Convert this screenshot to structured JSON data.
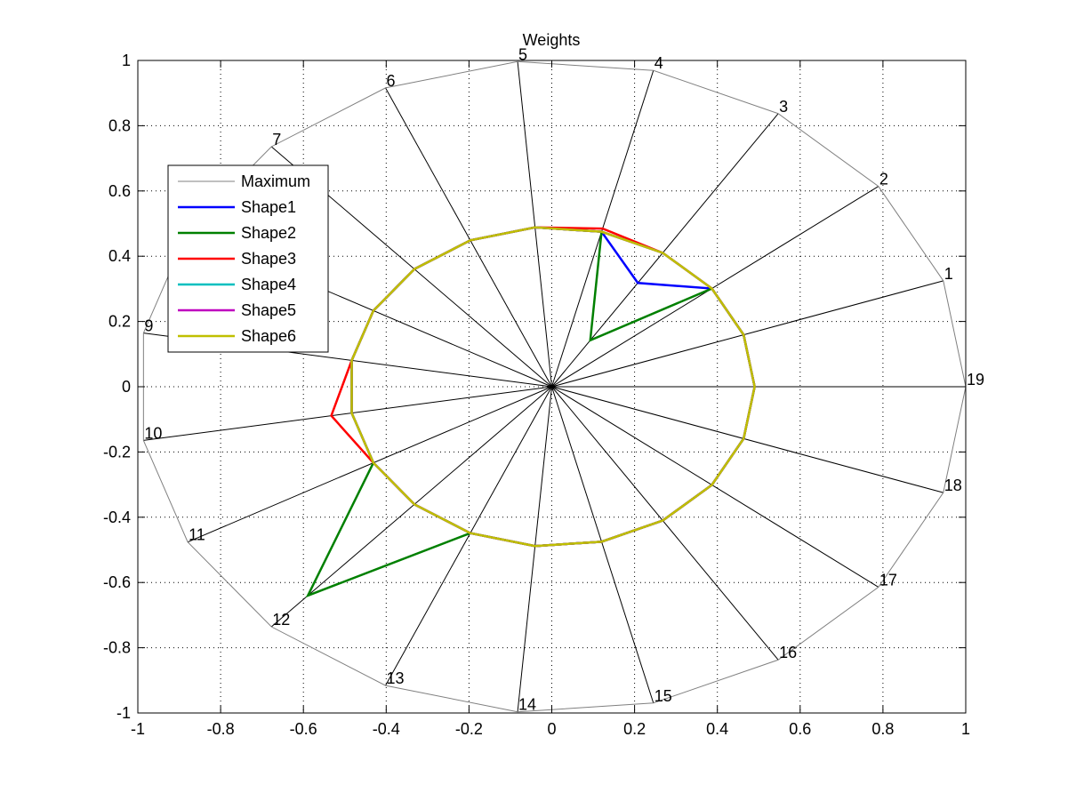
{
  "chart_data": {
    "type": "radar",
    "title": "Weights",
    "xlim": [
      -1,
      1
    ],
    "ylim": [
      -1,
      1
    ],
    "xticks": [
      "-1",
      "-0.8",
      "-0.6",
      "-0.4",
      "-0.2",
      "0",
      "0.2",
      "0.4",
      "0.6",
      "0.8",
      "1"
    ],
    "yticks": [
      "1",
      "0.8",
      "0.6",
      "0.4",
      "0.2",
      "0",
      "-0.2",
      "-0.4",
      "-0.6",
      "-0.8",
      "-1"
    ],
    "grid": true,
    "legend_position": "upper-left",
    "spokes": [
      "1",
      "2",
      "3",
      "4",
      "5",
      "6",
      "7",
      "8",
      "9",
      "10",
      "11",
      "12",
      "13",
      "14",
      "15",
      "16",
      "17",
      "18",
      "19"
    ],
    "series": [
      {
        "name": "Maximum",
        "color": "#808080",
        "width": 1,
        "values": [
          1,
          1,
          1,
          1,
          1,
          1,
          1,
          1,
          1,
          1,
          1,
          1,
          1,
          1,
          1,
          1,
          1,
          1,
          1
        ]
      },
      {
        "name": "Shape1",
        "color": "#0000ff",
        "width": 2.5,
        "values": [
          0.49,
          0.49,
          0.38,
          0.49,
          0.49,
          0.49,
          0.49,
          0.49,
          0.49,
          0.49,
          0.49,
          0.49,
          0.49,
          0.49,
          0.49,
          0.49,
          0.49,
          0.49,
          0.49
        ]
      },
      {
        "name": "Shape2",
        "color": "#008000",
        "width": 2.5,
        "values": [
          0.49,
          0.49,
          0.17,
          0.49,
          0.49,
          0.49,
          0.49,
          0.49,
          0.49,
          0.49,
          0.49,
          0.87,
          0.49,
          0.49,
          0.49,
          0.49,
          0.49,
          0.49,
          0.49
        ]
      },
      {
        "name": "Shape3",
        "color": "#ff0000",
        "width": 2.5,
        "values": [
          0.49,
          0.49,
          0.49,
          0.5,
          0.49,
          0.49,
          0.49,
          0.49,
          0.49,
          0.54,
          0.49,
          0.49,
          0.49,
          0.49,
          0.49,
          0.49,
          0.49,
          0.49,
          0.49
        ]
      },
      {
        "name": "Shape4",
        "color": "#00bfbf",
        "width": 2.5,
        "values": [
          0.49,
          0.49,
          0.49,
          0.49,
          0.49,
          0.49,
          0.49,
          0.49,
          0.49,
          0.49,
          0.49,
          0.49,
          0.49,
          0.49,
          0.49,
          0.49,
          0.49,
          0.49,
          0.49
        ]
      },
      {
        "name": "Shape5",
        "color": "#bf00bf",
        "width": 2.5,
        "values": [
          0.49,
          0.49,
          0.49,
          0.49,
          0.49,
          0.49,
          0.49,
          0.49,
          0.49,
          0.49,
          0.49,
          0.49,
          0.49,
          0.49,
          0.49,
          0.49,
          0.49,
          0.49,
          0.49
        ]
      },
      {
        "name": "Shape6",
        "color": "#bfbf00",
        "width": 2.5,
        "values": [
          0.49,
          0.49,
          0.49,
          0.49,
          0.49,
          0.49,
          0.49,
          0.49,
          0.49,
          0.49,
          0.49,
          0.49,
          0.49,
          0.49,
          0.49,
          0.49,
          0.49,
          0.49,
          0.49
        ]
      }
    ]
  }
}
